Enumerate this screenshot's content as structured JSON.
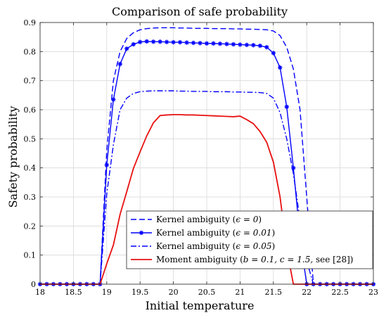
{
  "chart_data": {
    "type": "line",
    "title": "Comparison of safe probability",
    "xlabel": "Initial temperature",
    "ylabel": "Safety probability",
    "xlim": [
      18,
      23
    ],
    "ylim": [
      0,
      0.9
    ],
    "xticks": [
      "18",
      "18.5",
      "19",
      "19.5",
      "20",
      "20.5",
      "21",
      "21.5",
      "22",
      "22.5",
      "23"
    ],
    "yticks": [
      "0",
      "0.1",
      "0.2",
      "0.3",
      "0.4",
      "0.5",
      "0.6",
      "0.7",
      "0.8",
      "0.9"
    ],
    "grid": true,
    "legend_position": "bottom-right",
    "series": [
      {
        "name": "Kernel ambiguity (ϵ = 0)",
        "color": "#0000ff",
        "style": "dashed",
        "marker": "none",
        "x": [
          18,
          18.1,
          18.2,
          18.3,
          18.4,
          18.5,
          18.6,
          18.7,
          18.8,
          18.9,
          19.0,
          19.1,
          19.2,
          19.3,
          19.4,
          19.5,
          19.6,
          19.7,
          19.8,
          19.9,
          20.0,
          20.1,
          20.2,
          20.3,
          20.4,
          20.5,
          20.6,
          20.7,
          20.8,
          20.9,
          21.0,
          21.1,
          21.2,
          21.3,
          21.4,
          21.5,
          21.6,
          21.7,
          21.8,
          21.9,
          22.0,
          22.1,
          22.2,
          22.3,
          22.4,
          22.5,
          22.6,
          22.7,
          22.8,
          22.9,
          23.0
        ],
        "y": [
          0,
          0,
          0,
          0,
          0,
          0,
          0,
          0,
          0,
          0,
          0.46,
          0.7,
          0.8,
          0.845,
          0.865,
          0.875,
          0.879,
          0.881,
          0.882,
          0.882,
          0.882,
          0.881,
          0.881,
          0.88,
          0.88,
          0.88,
          0.879,
          0.879,
          0.879,
          0.878,
          0.878,
          0.877,
          0.877,
          0.876,
          0.875,
          0.871,
          0.855,
          0.815,
          0.74,
          0.6,
          0.3,
          0,
          0,
          0,
          0,
          0,
          0,
          0,
          0,
          0,
          0
        ]
      },
      {
        "name": "Kernel ambiguity (ϵ = 0.01)",
        "color": "#0000ff",
        "style": "solid",
        "marker": "asterisk",
        "x": [
          18,
          18.1,
          18.2,
          18.3,
          18.4,
          18.5,
          18.6,
          18.7,
          18.8,
          18.9,
          19.0,
          19.1,
          19.2,
          19.3,
          19.4,
          19.5,
          19.6,
          19.7,
          19.8,
          19.9,
          20.0,
          20.1,
          20.2,
          20.3,
          20.4,
          20.5,
          20.6,
          20.7,
          20.8,
          20.9,
          21.0,
          21.1,
          21.2,
          21.3,
          21.4,
          21.5,
          21.6,
          21.7,
          21.8,
          21.9,
          22.0,
          22.1,
          22.2,
          22.3,
          22.4,
          22.5,
          22.6,
          22.7,
          22.8,
          22.9,
          23.0
        ],
        "y": [
          0,
          0,
          0,
          0,
          0,
          0,
          0,
          0,
          0,
          0,
          0.41,
          0.635,
          0.757,
          0.81,
          0.825,
          0.833,
          0.835,
          0.834,
          0.834,
          0.833,
          0.832,
          0.832,
          0.831,
          0.83,
          0.829,
          0.828,
          0.828,
          0.827,
          0.826,
          0.825,
          0.824,
          0.823,
          0.822,
          0.82,
          0.815,
          0.795,
          0.745,
          0.61,
          0.4,
          0.16,
          0,
          0,
          0,
          0,
          0,
          0,
          0,
          0,
          0,
          0,
          0
        ]
      },
      {
        "name": "Kernel ambiguity (ϵ = 0.05)",
        "color": "#0000ff",
        "style": "dashdot",
        "marker": "none",
        "x": [
          18,
          18.1,
          18.2,
          18.3,
          18.4,
          18.5,
          18.6,
          18.7,
          18.8,
          18.9,
          19.0,
          19.1,
          19.2,
          19.3,
          19.4,
          19.5,
          19.6,
          19.7,
          19.8,
          19.9,
          20.0,
          20.1,
          20.2,
          20.3,
          20.4,
          20.5,
          20.6,
          20.7,
          20.8,
          20.9,
          21.0,
          21.1,
          21.2,
          21.3,
          21.4,
          21.5,
          21.6,
          21.7,
          21.8,
          21.9,
          22.0,
          22.1,
          22.2,
          22.3,
          22.4,
          22.5,
          22.6,
          22.7,
          22.8,
          22.9,
          23.0
        ],
        "y": [
          0,
          0,
          0,
          0,
          0,
          0,
          0,
          0,
          0,
          0,
          0.31,
          0.48,
          0.6,
          0.64,
          0.656,
          0.662,
          0.664,
          0.665,
          0.665,
          0.665,
          0.665,
          0.664,
          0.664,
          0.663,
          0.663,
          0.663,
          0.662,
          0.662,
          0.662,
          0.661,
          0.661,
          0.66,
          0.66,
          0.659,
          0.656,
          0.64,
          0.59,
          0.5,
          0.38,
          0.22,
          0.08,
          0,
          0,
          0,
          0,
          0,
          0,
          0,
          0,
          0,
          0
        ]
      },
      {
        "name": "Moment ambiguity (b = 0.1, c = 1.5, see [28])",
        "color": "#e81010",
        "style": "solid",
        "marker": "none",
        "x": [
          18,
          18.1,
          18.2,
          18.3,
          18.4,
          18.5,
          18.6,
          18.7,
          18.8,
          18.9,
          19.0,
          19.1,
          19.2,
          19.3,
          19.4,
          19.5,
          19.6,
          19.7,
          19.8,
          19.9,
          20.0,
          20.1,
          20.2,
          20.3,
          20.4,
          20.5,
          20.6,
          20.7,
          20.8,
          20.9,
          21.0,
          21.1,
          21.2,
          21.3,
          21.4,
          21.5,
          21.6,
          21.7,
          21.8,
          21.9,
          22.0,
          22.1,
          22.2,
          22.3,
          22.4,
          22.5,
          22.6,
          22.7,
          22.8,
          22.9,
          23.0
        ],
        "y": [
          0,
          0,
          0,
          0,
          0,
          0,
          0,
          0,
          0,
          0,
          0.07,
          0.135,
          0.24,
          0.318,
          0.398,
          0.455,
          0.51,
          0.555,
          0.58,
          0.582,
          0.583,
          0.583,
          0.582,
          0.582,
          0.581,
          0.58,
          0.579,
          0.578,
          0.577,
          0.576,
          0.578,
          0.566,
          0.552,
          0.525,
          0.488,
          0.42,
          0.3,
          0.12,
          0,
          0,
          0,
          0,
          0,
          0,
          0,
          0,
          0,
          0,
          0,
          0,
          0
        ]
      }
    ]
  },
  "legend": {
    "items": [
      {
        "prefix": "Kernel ambiguity (",
        "math": "ϵ = 0",
        "suffix": ")"
      },
      {
        "prefix": "Kernel ambiguity (",
        "math": "ϵ = 0.01",
        "suffix": ")"
      },
      {
        "prefix": "Kernel ambiguity (",
        "math": "ϵ = 0.05",
        "suffix": ")"
      },
      {
        "prefix": "Moment ambiguity (",
        "math": "b = 0.1, c = 1.5,",
        "suffix": " see [28])"
      }
    ]
  }
}
